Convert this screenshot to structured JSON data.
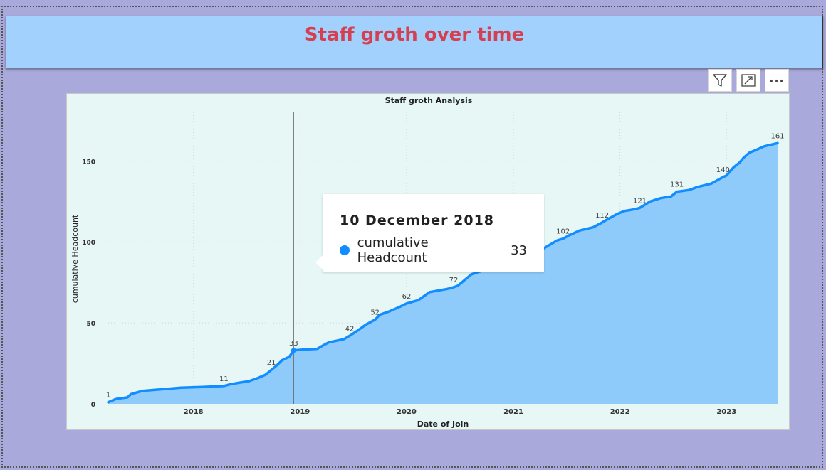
{
  "page": {
    "title": "Staff groth over time"
  },
  "visual_header": {
    "icons": [
      "filter-icon",
      "focus-mode-icon",
      "more-options-icon"
    ],
    "more_label": "···"
  },
  "tooltip": {
    "date": "10 December 2018",
    "series": "cumulative Headcount",
    "value": "33"
  },
  "colors": {
    "line": "#118dff",
    "area": "#8fcbfa",
    "plot_bg": "#e6f7f5",
    "title": "#d44050",
    "header_bg": "#a3d1fd",
    "page_bg": "#a9a9db"
  },
  "chart_data": {
    "type": "area",
    "title": "Staff groth Analysis",
    "xlabel": "Date of Join",
    "ylabel": "cumulative Headcount",
    "ylim": [
      0,
      180
    ],
    "yticks": [
      0,
      50,
      100,
      150
    ],
    "xlim": [
      "2017-03-15",
      "2023-06-25"
    ],
    "xticks": [
      {
        "date": "2018-01-01",
        "label": "2018"
      },
      {
        "date": "2019-01-01",
        "label": "2019"
      },
      {
        "date": "2020-01-01",
        "label": "2020"
      },
      {
        "date": "2021-01-01",
        "label": "2021"
      },
      {
        "date": "2022-01-01",
        "label": "2022"
      },
      {
        "date": "2023-01-01",
        "label": "2023"
      }
    ],
    "grid": true,
    "hover_date": "2018-12-10",
    "series": [
      {
        "name": "cumulative Headcount",
        "points": [
          [
            "2017-03-15",
            1
          ],
          [
            "2017-04-10",
            3
          ],
          [
            "2017-05-20",
            4
          ],
          [
            "2017-06-01",
            6
          ],
          [
            "2017-06-20",
            7
          ],
          [
            "2017-07-10",
            8
          ],
          [
            "2017-09-15",
            9
          ],
          [
            "2017-11-20",
            10
          ],
          [
            "2018-02-10",
            10.5
          ],
          [
            "2018-04-15",
            11
          ],
          [
            "2018-05-05",
            12
          ],
          [
            "2018-06-05",
            13
          ],
          [
            "2018-07-10",
            14
          ],
          [
            "2018-08-10",
            16
          ],
          [
            "2018-09-05",
            18
          ],
          [
            "2018-09-25",
            21
          ],
          [
            "2018-10-15",
            24
          ],
          [
            "2018-11-01",
            27
          ],
          [
            "2018-11-25",
            29
          ],
          [
            "2018-12-10",
            33
          ],
          [
            "2019-01-10",
            33.5
          ],
          [
            "2019-03-01",
            34
          ],
          [
            "2019-03-20",
            36
          ],
          [
            "2019-04-10",
            38
          ],
          [
            "2019-06-01",
            40
          ],
          [
            "2019-06-20",
            42
          ],
          [
            "2019-07-15",
            45
          ],
          [
            "2019-08-15",
            49
          ],
          [
            "2019-09-15",
            52
          ],
          [
            "2019-10-01",
            55
          ],
          [
            "2019-11-01",
            57
          ],
          [
            "2019-12-10",
            60
          ],
          [
            "2020-01-01",
            62
          ],
          [
            "2020-02-10",
            64
          ],
          [
            "2020-03-20",
            69
          ],
          [
            "2020-05-20",
            71
          ],
          [
            "2020-06-10",
            72
          ],
          [
            "2020-06-25",
            73
          ],
          [
            "2020-07-15",
            76
          ],
          [
            "2020-08-10",
            80
          ],
          [
            "2021-03-01",
            92
          ],
          [
            "2021-04-15",
            96
          ],
          [
            "2021-06-01",
            101
          ],
          [
            "2021-06-20",
            102
          ],
          [
            "2021-07-10",
            104
          ],
          [
            "2021-08-15",
            107
          ],
          [
            "2021-10-01",
            109
          ],
          [
            "2021-11-01",
            112
          ],
          [
            "2021-11-20",
            114
          ],
          [
            "2021-12-20",
            117
          ],
          [
            "2022-01-15",
            119
          ],
          [
            "2022-02-15",
            120
          ],
          [
            "2022-03-10",
            121
          ],
          [
            "2022-04-15",
            125
          ],
          [
            "2022-05-20",
            127
          ],
          [
            "2022-06-25",
            128
          ],
          [
            "2022-07-15",
            131
          ],
          [
            "2022-08-25",
            132
          ],
          [
            "2022-09-25",
            134
          ],
          [
            "2022-11-10",
            136
          ],
          [
            "2022-12-20",
            140
          ],
          [
            "2023-01-01",
            141
          ],
          [
            "2023-01-25",
            146
          ],
          [
            "2023-02-15",
            149
          ],
          [
            "2023-03-01",
            152
          ],
          [
            "2023-03-20",
            155
          ],
          [
            "2023-04-15",
            157
          ],
          [
            "2023-05-10",
            159
          ],
          [
            "2023-06-25",
            161
          ]
        ],
        "labels": [
          {
            "date": "2017-03-15",
            "value": 1,
            "text": "1"
          },
          {
            "date": "2018-04-15",
            "value": 11,
            "text": "11"
          },
          {
            "date": "2018-09-25",
            "value": 21,
            "text": "21"
          },
          {
            "date": "2018-12-10",
            "value": 33,
            "text": "33"
          },
          {
            "date": "2019-06-20",
            "value": 42,
            "text": "42"
          },
          {
            "date": "2019-09-15",
            "value": 52,
            "text": "52"
          },
          {
            "date": "2020-01-01",
            "value": 62,
            "text": "62"
          },
          {
            "date": "2020-06-10",
            "value": 72,
            "text": "72"
          },
          {
            "date": "2021-06-20",
            "value": 102,
            "text": "102"
          },
          {
            "date": "2021-11-01",
            "value": 112,
            "text": "112"
          },
          {
            "date": "2022-03-10",
            "value": 121,
            "text": "121"
          },
          {
            "date": "2022-07-15",
            "value": 131,
            "text": "131"
          },
          {
            "date": "2022-12-20",
            "value": 140,
            "text": "140"
          },
          {
            "date": "2023-06-25",
            "value": 161,
            "text": "161"
          }
        ]
      }
    ]
  }
}
